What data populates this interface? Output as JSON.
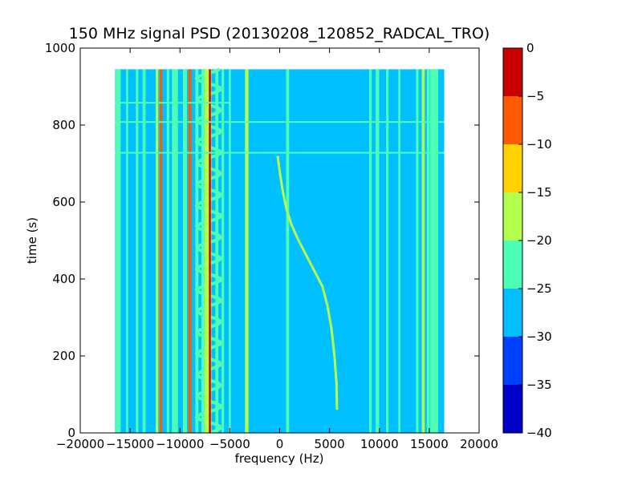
{
  "chart_data": {
    "type": "heatmap",
    "title": "150 MHz signal PSD (20130208_120852_RADCAL_TRO)",
    "xlabel": "frequency (Hz)",
    "ylabel": "time (s)",
    "xlim": [
      -20000,
      20000
    ],
    "ylim": [
      0,
      1000
    ],
    "xticks": [
      -20000,
      -15000,
      -10000,
      -5000,
      0,
      5000,
      10000,
      15000,
      20000
    ],
    "xtick_labels": [
      "−20000",
      "−15000",
      "−10000",
      "−5000",
      "0",
      "5000",
      "10000",
      "15000",
      "20000"
    ],
    "yticks": [
      0,
      200,
      400,
      600,
      800,
      1000
    ],
    "ytick_labels": [
      "0",
      "200",
      "400",
      "600",
      "800",
      "1000"
    ],
    "data_extent": {
      "x": [
        -16500,
        16500
      ],
      "y": [
        0,
        945
      ]
    },
    "background_level": -27.5,
    "colorbar": {
      "levels": [
        -40,
        -35,
        -30,
        -25,
        -20,
        -15,
        -10,
        -5,
        0
      ],
      "tick_labels": [
        "−40",
        "−35",
        "−30",
        "−25",
        "−20",
        "−15",
        "−10",
        "−5",
        "0"
      ],
      "colors": [
        "#0000c8",
        "#0040ff",
        "#00c0ff",
        "#4dffb4",
        "#b4ff4d",
        "#ffd200",
        "#ff5a00",
        "#c80000"
      ]
    },
    "vertical_lines": [
      {
        "x": -16200,
        "width": 500,
        "level": -22.5
      },
      {
        "x": -15300,
        "width": 200,
        "level": -22.5
      },
      {
        "x": -14300,
        "width": 250,
        "level": -22.5
      },
      {
        "x": -13600,
        "width": 300,
        "level": -22.5
      },
      {
        "x": -12300,
        "width": 250,
        "level": -17.5
      },
      {
        "x": -11900,
        "width": 250,
        "level": -7.5
      },
      {
        "x": -11200,
        "width": 250,
        "level": -22.5
      },
      {
        "x": -10500,
        "width": 600,
        "level": -22.5
      },
      {
        "x": -9500,
        "width": 400,
        "level": -22.5
      },
      {
        "x": -9000,
        "width": 300,
        "level": -7.5
      },
      {
        "x": -8300,
        "width": 300,
        "level": -22.5
      },
      {
        "x": -7700,
        "width": 300,
        "level": -22.5
      },
      {
        "x": -7200,
        "width": 700,
        "level": -17.5
      },
      {
        "x": -7000,
        "width": 200,
        "level": -2.5
      },
      {
        "x": -6300,
        "width": 300,
        "level": -22.5
      },
      {
        "x": -5700,
        "width": 250,
        "level": -22.5
      },
      {
        "x": -5000,
        "width": 200,
        "level": -22.5
      },
      {
        "x": -3300,
        "width": 350,
        "level": -17.5
      },
      {
        "x": 800,
        "width": 300,
        "level": -22.5
      },
      {
        "x": 9100,
        "width": 250,
        "level": -22.5
      },
      {
        "x": 9800,
        "width": 350,
        "level": -22.5
      },
      {
        "x": 10800,
        "width": 250,
        "level": -22.5
      },
      {
        "x": 12000,
        "width": 200,
        "level": -22.5
      },
      {
        "x": 13800,
        "width": 250,
        "level": -22.5
      },
      {
        "x": 14400,
        "width": 300,
        "level": -17.5
      },
      {
        "x": 14900,
        "width": 300,
        "level": -22.5
      },
      {
        "x": 15500,
        "width": 800,
        "level": -22.5
      }
    ],
    "horizontal_lines": [
      {
        "y": 808,
        "x": [
          -16500,
          16500
        ],
        "level": -22.5
      },
      {
        "y": 728,
        "x": [
          -16500,
          16500
        ],
        "level": -22.5
      },
      {
        "y": 858,
        "x": [
          -16500,
          -5000
        ],
        "level": -22.5
      }
    ],
    "chirp": {
      "level": -17.5,
      "points": [
        [
          -200,
          720
        ],
        [
          0,
          680
        ],
        [
          300,
          630
        ],
        [
          700,
          580
        ],
        [
          1200,
          540
        ],
        [
          1900,
          500
        ],
        [
          2700,
          460
        ],
        [
          3500,
          420
        ],
        [
          4300,
          380
        ],
        [
          4800,
          330
        ],
        [
          5200,
          270
        ],
        [
          5500,
          200
        ],
        [
          5700,
          130
        ],
        [
          5750,
          60
        ]
      ]
    },
    "wiggle": {
      "x": -7100,
      "y_range": [
        0,
        945
      ],
      "amplitude": 1200,
      "period": 55,
      "level": -22.5
    }
  }
}
